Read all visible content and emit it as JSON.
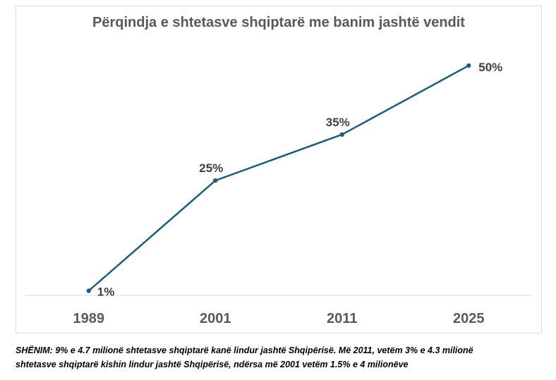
{
  "chart_data": {
    "type": "line",
    "title": "Përqindja e shtetasve shqiptarë me banim jashtë vendit",
    "categories": [
      "1989",
      "2001",
      "2011",
      "2025"
    ],
    "values": [
      1,
      25,
      35,
      50
    ],
    "data_labels": [
      "1%",
      "25%",
      "35%",
      "50%"
    ],
    "xlabel": "",
    "ylabel": "",
    "ylim": [
      0,
      52
    ],
    "grid": false,
    "line_color": "#1f5c7a"
  },
  "note": {
    "line1": "SHËNIM: 9% e 4.7 milionë shtetasve shqiptarë kanë lindur jashtë Shqipërisë. Më 2011, vetëm 3% e 4.3 milionë",
    "line2": "shtetasve shqiptarë kishin lindur jashtë Shqipërisë, ndërsa më 2001 vetëm 1.5% e 4 milionëve"
  }
}
